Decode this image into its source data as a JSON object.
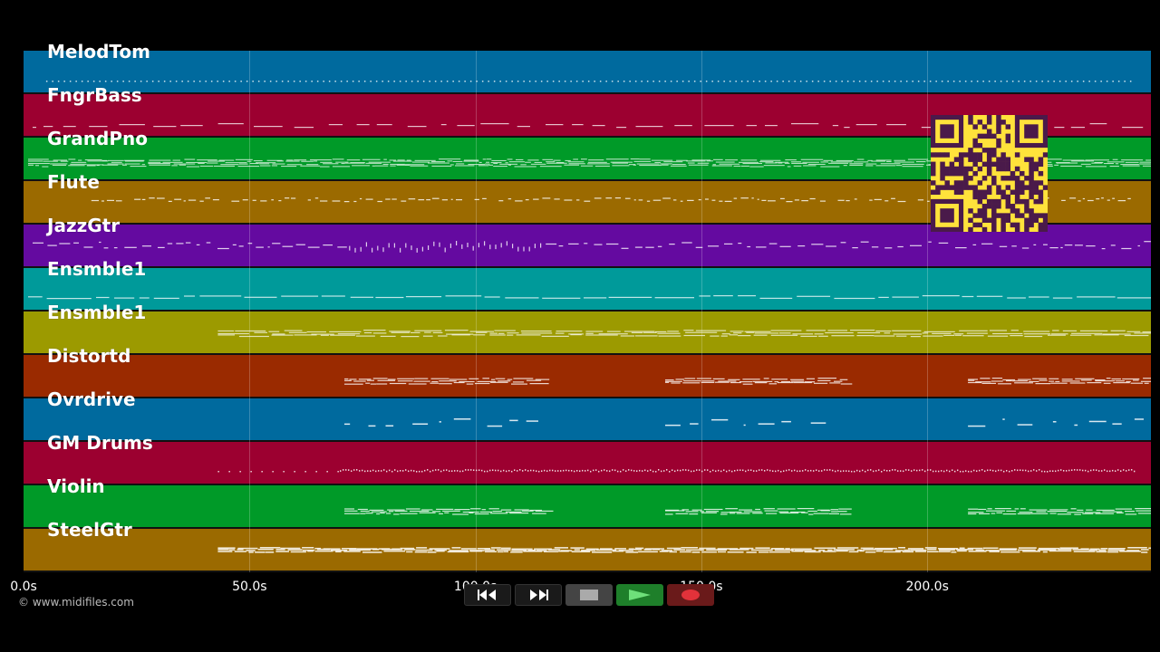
{
  "tracks": [
    {
      "name": "MelodTom",
      "color": "#006a9e",
      "style": "dots",
      "start": 5,
      "end": 245
    },
    {
      "name": "FngrBass",
      "color": "#9c0030",
      "style": "sparse",
      "start": 2,
      "end": 248
    },
    {
      "name": "GrandPno",
      "color": "#009a28",
      "style": "dense",
      "start": 1,
      "end": 249
    },
    {
      "name": "Flute",
      "color": "#9b6a00",
      "style": "phrases",
      "start": 15,
      "end": 245
    },
    {
      "name": "JazzGtr",
      "color": "#640aa0",
      "style": "mixed",
      "start": 2,
      "end": 249
    },
    {
      "name": "Ensmble1",
      "color": "#009a9a",
      "style": "line",
      "start": 1,
      "end": 249
    },
    {
      "name": "Ensmble1",
      "color": "#9c9a00",
      "style": "double",
      "start": 43,
      "end": 249
    },
    {
      "name": "Distortd",
      "color": "#9a2a00",
      "style": "blocks",
      "start": 71,
      "end": 249
    },
    {
      "name": "Ovrdrive",
      "color": "#006a9e",
      "style": "scatter",
      "start": 71,
      "end": 249
    },
    {
      "name": "GM Drums",
      "color": "#9c0030",
      "style": "hits",
      "start": 43,
      "end": 246
    },
    {
      "name": "Violin",
      "color": "#009a28",
      "style": "blocks",
      "start": 71,
      "end": 248
    },
    {
      "name": "SteelGtr",
      "color": "#9b6a00",
      "style": "thick",
      "start": 43,
      "end": 249
    }
  ],
  "timeline": {
    "ticks": [
      "0.0s",
      "50.0s",
      "100.0s",
      "150.0s",
      "200.0s"
    ],
    "tick_values": [
      0,
      50,
      100,
      150,
      200
    ],
    "max_seconds": 249.5
  },
  "transport": [
    {
      "name": "rewind-button",
      "icon": "rewind-icon"
    },
    {
      "name": "fast-forward-button",
      "icon": "fast-forward-icon"
    },
    {
      "name": "stop-button",
      "icon": "stop-icon"
    },
    {
      "name": "play-button",
      "icon": "play-icon",
      "color": "#1e7f2a"
    },
    {
      "name": "record-button",
      "icon": "record-icon",
      "color": "#7a1a1a"
    }
  ],
  "copyright": "© www.midifiles.com",
  "qr_code": {
    "fg": "#4a1a4a",
    "bg": "#ffe23b"
  }
}
